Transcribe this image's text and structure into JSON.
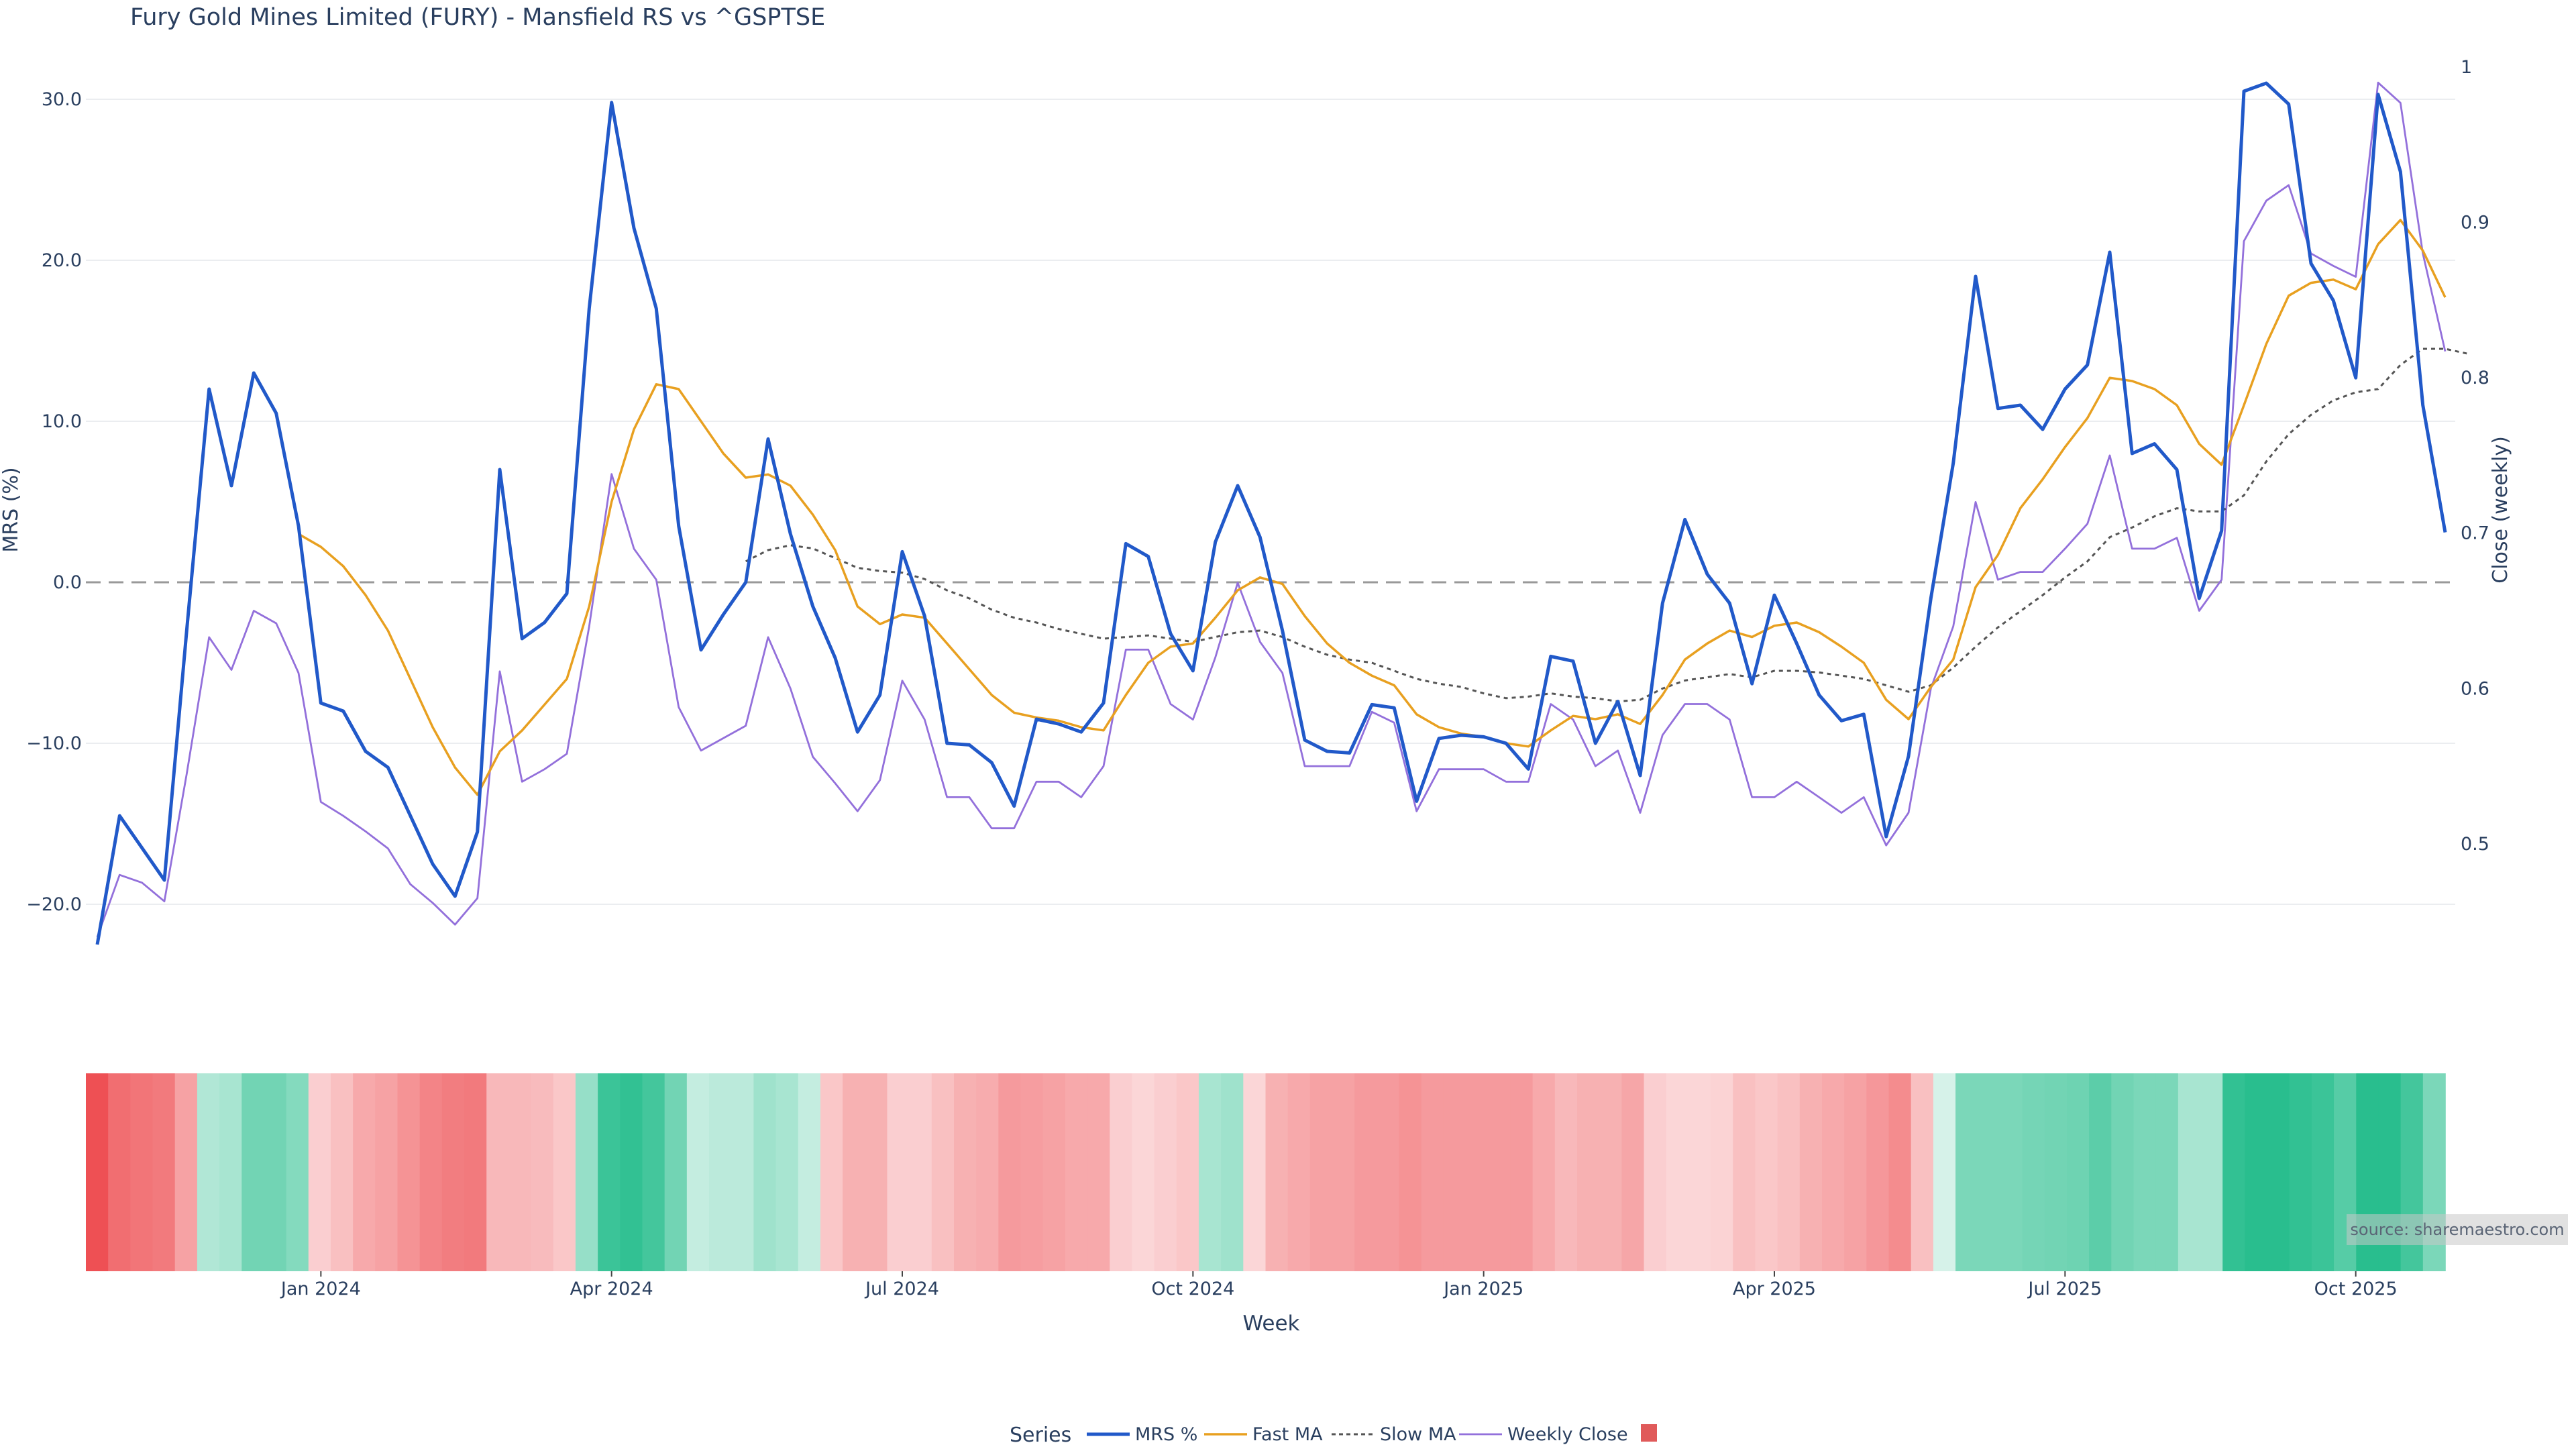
{
  "title": "Fury Gold Mines Limited (FURY) - Mansfield RS vs ^GSPTSE",
  "source": "source: sharemaestro.com",
  "colors": {
    "mrs": "#2159c9",
    "fast_ma": "#e8a020",
    "slow_ma": "#555555",
    "weekly_close": "#9370db",
    "zero_line": "#999999",
    "legend_square": "#e05a5a"
  },
  "legend": {
    "title": "Series",
    "items": [
      "MRS %",
      "Fast MA",
      "Slow MA",
      "Weekly Close",
      ""
    ]
  },
  "chart_data": [
    {
      "type": "line",
      "title": "Fury Gold Mines Limited (FURY) - Mansfield RS vs ^GSPTSE",
      "ylabel": "MRS (%)",
      "y2label": "Close (weekly)",
      "ylim": [
        -23,
        32
      ],
      "y2lim": [
        0.43,
        1.0
      ],
      "yticks": [
        "30.0",
        "20.0",
        "10.0",
        "0.0",
        "−10.0",
        "−20.0"
      ],
      "y2ticks": [
        "1",
        "0.9",
        "0.8",
        "0.7",
        "0.6",
        "0.5"
      ],
      "grid": true,
      "legend_placement": "bottom-center",
      "series": [
        {
          "name": "MRS %",
          "axis": "left",
          "values": [
            -22.5,
            -14.5,
            -16.5,
            -18.5,
            -3,
            12,
            6,
            13,
            10.5,
            3.5,
            -7.5,
            -8,
            -10.5,
            -11.5,
            -14.5,
            -17.5,
            -19.5,
            -15.5,
            7,
            -3.5,
            -2.5,
            -0.7,
            17,
            29.8,
            22,
            17,
            3.5,
            -4.2,
            -2,
            0,
            8.9,
            3,
            -1.5,
            -4.7,
            -9.3,
            -7,
            1.9,
            -2.1,
            -10,
            -10.1,
            -11.2,
            -13.9,
            -8.5,
            -8.8,
            -9.3,
            -7.5,
            2.4,
            1.6,
            -3.2,
            -5.5,
            2.5,
            6,
            2.8,
            -3,
            -9.8,
            -10.5,
            -10.6,
            -7.6,
            -7.8,
            -13.6,
            -9.7,
            -9.5,
            -9.6,
            -10,
            -11.6,
            -4.6,
            -4.9,
            -10,
            -7.4,
            -12,
            -1.3,
            3.9,
            0.5,
            -1.3,
            -6.3,
            -0.8,
            -3.8,
            -7,
            -8.6,
            -8.2,
            -15.8,
            -10.8,
            -1,
            7.4,
            19,
            10.8,
            11,
            9.5,
            12,
            13.5,
            20.5,
            8,
            8.6,
            7,
            -1,
            3.2,
            30.5,
            31,
            29.7,
            19.8,
            17.5,
            12.7,
            30.3,
            25.5,
            11,
            3.1
          ]
        },
        {
          "name": "Fast MA",
          "axis": "left",
          "values": [
            null,
            null,
            null,
            null,
            null,
            null,
            null,
            null,
            null,
            3,
            2.2,
            1,
            -0.8,
            -3,
            -6,
            -9,
            -11.5,
            -13.2,
            -10.5,
            -9.2,
            -7.6,
            -6,
            -1.5,
            5,
            9.5,
            12.3,
            12,
            10,
            8,
            6.5,
            6.7,
            6,
            4.2,
            2,
            -1.5,
            -2.6,
            -2,
            -2.2,
            -3.8,
            -5.4,
            -7,
            -8.1,
            -8.4,
            -8.6,
            -9,
            -9.2,
            -7,
            -5,
            -4,
            -3.8,
            -2.2,
            -0.5,
            0.3,
            -0.1,
            -2.1,
            -3.8,
            -5,
            -5.8,
            -6.4,
            -8.2,
            -9,
            -9.4,
            -9.6,
            -10,
            -10.2,
            -9.2,
            -8.3,
            -8.5,
            -8.2,
            -8.8,
            -7,
            -4.8,
            -3.8,
            -3,
            -3.4,
            -2.7,
            -2.5,
            -3.1,
            -4,
            -5,
            -7.3,
            -8.5,
            -6.5,
            -4.8,
            -0.3,
            1.7,
            4.6,
            6.4,
            8.4,
            10.2,
            12.7,
            12.5,
            12,
            11,
            8.6,
            7.3,
            11,
            14.8,
            17.8,
            18.6,
            18.8,
            18.2,
            21,
            22.5,
            20.6,
            17.7
          ]
        },
        {
          "name": "Slow MA",
          "axis": "left",
          "values": [
            null,
            null,
            null,
            null,
            null,
            null,
            null,
            null,
            null,
            null,
            null,
            null,
            null,
            null,
            null,
            null,
            null,
            null,
            null,
            null,
            null,
            null,
            null,
            null,
            null,
            null,
            null,
            null,
            null,
            1.3,
            2,
            2.3,
            2.1,
            1.5,
            0.9,
            0.7,
            0.6,
            0.2,
            -0.5,
            -1,
            -1.7,
            -2.2,
            -2.5,
            -2.9,
            -3.2,
            -3.5,
            -3.4,
            -3.3,
            -3.5,
            -3.7,
            -3.4,
            -3.1,
            -3,
            -3.4,
            -4,
            -4.5,
            -4.8,
            -5,
            -5.5,
            -6,
            -6.3,
            -6.5,
            -6.9,
            -7.2,
            -7.1,
            -6.9,
            -7.1,
            -7.2,
            -7.4,
            -7.3,
            -6.6,
            -6.1,
            -5.9,
            -5.7,
            -5.9,
            -5.5,
            -5.5,
            -5.6,
            -5.8,
            -6,
            -6.4,
            -6.8,
            -6.4,
            -5.3,
            -4,
            -2.8,
            -1.8,
            -0.8,
            0.3,
            1.3,
            2.8,
            3.4,
            4.1,
            4.6,
            4.4,
            4.4,
            5.4,
            7.5,
            9.2,
            10.4,
            11.3,
            11.8,
            12,
            13.5,
            14.5,
            14.5,
            14.2
          ]
        },
        {
          "name": "Weekly Close",
          "axis": "right",
          "values": [
            0.44,
            0.48,
            0.475,
            0.463,
            0.545,
            0.633,
            0.612,
            0.65,
            0.642,
            0.61,
            0.527,
            0.518,
            0.508,
            0.497,
            0.474,
            0.462,
            0.448,
            0.465,
            0.611,
            0.54,
            0.548,
            0.558,
            0.64,
            0.738,
            0.69,
            0.67,
            0.588,
            0.56,
            0.568,
            0.576,
            0.633,
            0.6,
            0.556,
            0.539,
            0.521,
            0.541,
            0.605,
            0.58,
            0.53,
            0.53,
            0.51,
            0.51,
            0.54,
            0.54,
            0.53,
            0.55,
            0.625,
            0.625,
            0.59,
            0.58,
            0.62,
            0.668,
            0.63,
            0.61,
            0.55,
            0.55,
            0.55,
            0.585,
            0.578,
            0.521,
            0.548,
            0.548,
            0.548,
            0.54,
            0.54,
            0.59,
            0.58,
            0.55,
            0.56,
            0.52,
            0.57,
            0.59,
            0.59,
            0.58,
            0.53,
            0.53,
            0.54,
            0.53,
            0.52,
            0.53,
            0.499,
            0.52,
            0.6,
            0.64,
            0.72,
            0.67,
            0.675,
            0.675,
            0.69,
            0.706,
            0.75,
            0.69,
            0.69,
            0.697,
            0.65,
            0.67,
            0.888,
            0.914,
            0.924,
            0.88,
            0.872,
            0.865,
            0.99,
            0.977,
            0.88,
            0.817
          ]
        }
      ],
      "heat_strip": {
        "values": [
          -1,
          -0.8,
          -0.75,
          -0.72,
          -0.45,
          0.25,
          0.3,
          0.6,
          0.6,
          0.5,
          -0.15,
          -0.25,
          -0.4,
          -0.45,
          -0.55,
          -0.65,
          -0.7,
          -0.72,
          -0.3,
          -0.3,
          -0.28,
          -0.2,
          0.4,
          0.9,
          0.95,
          0.85,
          0.6,
          0.15,
          0.2,
          0.2,
          0.35,
          0.3,
          0.15,
          -0.2,
          -0.35,
          -0.35,
          -0.15,
          -0.15,
          -0.25,
          -0.35,
          -0.38,
          -0.5,
          -0.48,
          -0.45,
          -0.4,
          -0.4,
          -0.15,
          -0.1,
          -0.15,
          -0.2,
          0.3,
          0.35,
          -0.1,
          -0.35,
          -0.4,
          -0.45,
          -0.45,
          -0.5,
          -0.5,
          -0.55,
          -0.5,
          -0.5,
          -0.5,
          -0.5,
          -0.5,
          -0.4,
          -0.3,
          -0.35,
          -0.35,
          -0.42,
          -0.15,
          -0.1,
          -0.1,
          -0.12,
          -0.25,
          -0.2,
          -0.25,
          -0.35,
          -0.4,
          -0.45,
          -0.52,
          -0.6,
          -0.25,
          0.05,
          0.55,
          0.55,
          0.55,
          0.58,
          0.6,
          0.62,
          0.72,
          0.6,
          0.55,
          0.55,
          0.3,
          0.3,
          0.95,
          1,
          1,
          0.95,
          0.9,
          0.75,
          1,
          1,
          0.85,
          0.55
        ]
      },
      "xlabel": "Week",
      "xticks": [
        "Jan 2024",
        "Apr 2024",
        "Jul 2024",
        "Oct 2024",
        "Jan 2025",
        "Apr 2025",
        "Jul 2025",
        "Oct 2025"
      ],
      "xtick_positions": [
        10,
        23,
        36,
        49,
        62,
        75,
        88,
        101
      ],
      "week_count": 106
    }
  ]
}
